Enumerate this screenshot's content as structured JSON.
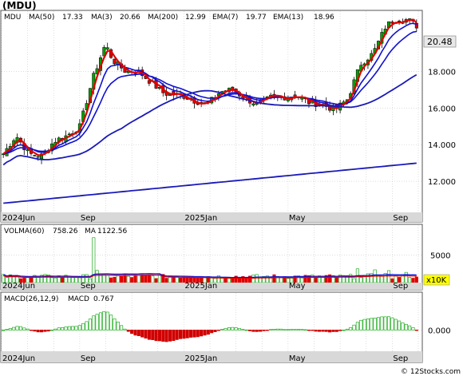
{
  "header": {
    "ticker": "(MDU)"
  },
  "watermark": "© 12Stocks.com",
  "colors": {
    "up_candle": "#00a000",
    "down_candle": "#e00000",
    "ma_short": "#1010d0",
    "ma_long": "#1a1ab8",
    "ema": "#e00000",
    "volume_up": "#ffffff",
    "volume_down": "#e00000",
    "macd_pos": "#ffffff",
    "macd_neg": "#d00000",
    "axis_band": "#d8d8d8",
    "last_price_box": "#e8e8e8",
    "vol_scale_box": "#ffff00"
  },
  "chart_data": [
    {
      "type": "candlestick",
      "panel": "price",
      "title_items": [
        {
          "label": "MDU",
          "value": ""
        },
        {
          "label": "MA(50)",
          "value": "17.33"
        },
        {
          "label": "MA(3)",
          "value": "20.66"
        },
        {
          "label": "MA(200)",
          "value": "12.99"
        },
        {
          "label": "EMA(7)",
          "value": "19.77"
        },
        {
          "label": "EMA(13)",
          "value": "18.96"
        }
      ],
      "last_price": "20.48",
      "y_ticks": [
        "18.000",
        "16.000",
        "14.000",
        "12.000"
      ],
      "y_tick_values": [
        18,
        16,
        14,
        12
      ],
      "ylim": [
        10.3,
        21.3
      ],
      "x_tick_labels": [
        "2024Jun",
        "Sep",
        "2025Jan",
        "May",
        "Sep"
      ],
      "month_axis": [
        "2024-06",
        "2024-07",
        "2024-08",
        "2024-09",
        "2024-10",
        "2024-11",
        "2024-12",
        "2025-01",
        "2025-02",
        "2025-03",
        "2025-04",
        "2025-05",
        "2025-06",
        "2025-07",
        "2025-08",
        "2025-09",
        "2025-10"
      ],
      "close_series": {
        "months": [
          0,
          0.5,
          1,
          1.5,
          2,
          2.5,
          3,
          3.5,
          4,
          4.3,
          4.8,
          5.3,
          5.8,
          6.3,
          7,
          7.5,
          8,
          8.5,
          9,
          9.5,
          10,
          10.5,
          11,
          11.5,
          12,
          12.5,
          13,
          13.5,
          14,
          14.5,
          15,
          15.3,
          15.6,
          15.9,
          16.2
        ],
        "values": [
          13.5,
          14.5,
          13.5,
          13.4,
          14.2,
          14.5,
          15.0,
          17.6,
          19.5,
          18.6,
          18.0,
          18.0,
          17.4,
          16.8,
          16.7,
          16.4,
          16.2,
          16.9,
          17.0,
          16.5,
          16.2,
          16.6,
          16.6,
          16.7,
          16.3,
          16.2,
          15.9,
          16.5,
          18.4,
          19.0,
          20.5,
          20.8,
          20.9,
          20.8,
          20.5
        ]
      },
      "series": [
        {
          "name": "MA(50)",
          "value": "17.33"
        },
        {
          "name": "MA(3)",
          "value": "20.66"
        },
        {
          "name": "MA(200)",
          "value": "12.99"
        },
        {
          "name": "EMA(7)",
          "value": "19.77"
        },
        {
          "name": "EMA(13)",
          "value": "18.96"
        }
      ],
      "grid": true
    },
    {
      "type": "bar",
      "panel": "volume",
      "title_items": [
        {
          "label": "VOLMA(60)",
          "value": "758.26"
        },
        {
          "label": "MA",
          "value": "1122.56"
        }
      ],
      "y_ticks": [
        "5000"
      ],
      "y_tick_values": [
        5000
      ],
      "scale_label": "x10K",
      "ylim": [
        0,
        8500
      ],
      "x_tick_labels": [
        "2024Jun",
        "Sep",
        "2025Jan",
        "May",
        "Sep"
      ],
      "grid": true
    },
    {
      "type": "bar",
      "panel": "macd",
      "title_items": [
        {
          "label": "MACD(26,12,9)",
          "value": ""
        },
        {
          "label": "MACD",
          "value": "0.767"
        }
      ],
      "y_ticks": [
        "0.000"
      ],
      "y_tick_values": [
        0
      ],
      "ylim": [
        -1.2,
        1.5
      ],
      "x_tick_labels": [
        "2024Jun",
        "Sep",
        "2025Jan",
        "May",
        "Sep"
      ],
      "grid": true
    }
  ]
}
